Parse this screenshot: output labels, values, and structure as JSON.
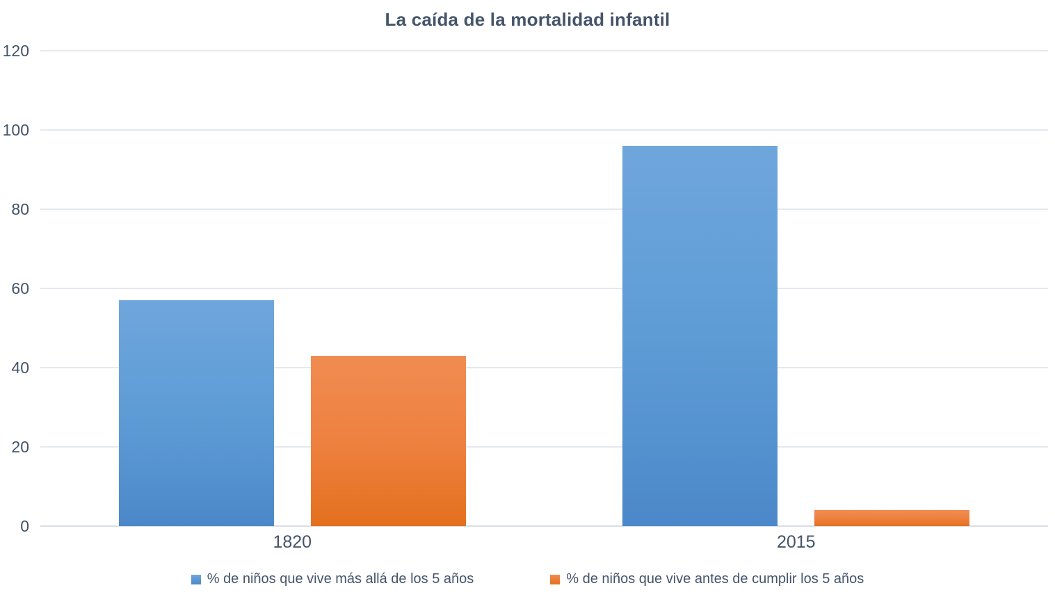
{
  "chart_data": {
    "type": "bar",
    "title": "La caída de la mortalidad infantil",
    "categories": [
      "1820",
      "2015"
    ],
    "series": [
      {
        "name": "% de niños que vive más allá de los 5 años",
        "color": "#5B9BD5",
        "gradient": [
          "#6FA6DC",
          "#5E9CD6",
          "#4C88C9"
        ],
        "values": [
          57,
          96
        ]
      },
      {
        "name": "% de niños que vive antes de cumplir los 5 años",
        "color": "#ED7D31",
        "gradient": [
          "#F08C51",
          "#EE8140",
          "#E4701E"
        ],
        "values": [
          43,
          4
        ]
      }
    ],
    "xlabel": "",
    "ylabel": "",
    "ylim": [
      0,
      120
    ],
    "yticks": [
      0,
      20,
      40,
      60,
      80,
      100,
      120
    ],
    "grid": "horizontal",
    "legend_position": "bottom"
  },
  "colors": {
    "title_text": "#44546A",
    "axis_text": "#44546A",
    "gridline": "#E4E8EF",
    "zero_line": "#D9DEE6",
    "background": "#FFFFFF"
  }
}
